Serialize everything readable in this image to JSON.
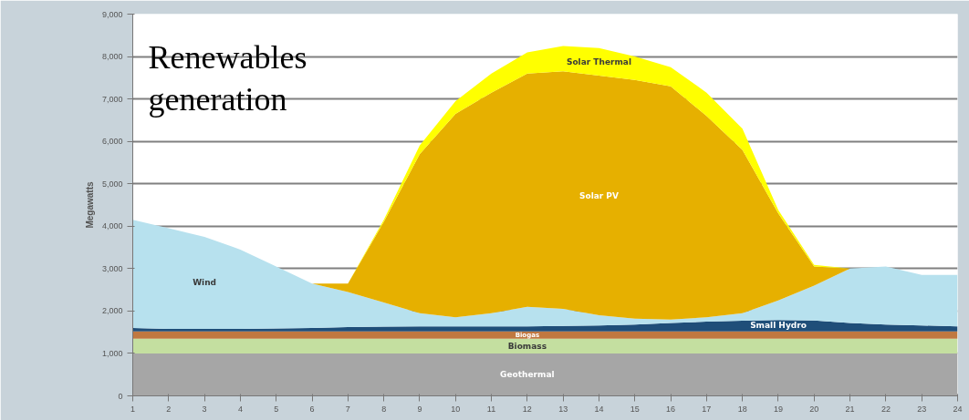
{
  "chart_data": {
    "type": "area",
    "title": "Renewables generation",
    "ylabel": "Megawatts",
    "stacked": true,
    "x": [
      1,
      2,
      3,
      4,
      5,
      6,
      7,
      8,
      9,
      10,
      11,
      12,
      13,
      14,
      15,
      16,
      17,
      18,
      19,
      20,
      21,
      22,
      23,
      24
    ],
    "xlim": [
      1,
      24
    ],
    "xticks": [
      1,
      2,
      3,
      4,
      5,
      6,
      7,
      8,
      9,
      10,
      11,
      12,
      13,
      14,
      15,
      16,
      17,
      18,
      19,
      20,
      21,
      22,
      23,
      24
    ],
    "ylim": [
      0,
      9000
    ],
    "yticks": [
      0,
      {
        "value": 1000,
        "label": "1,000"
      },
      {
        "value": 2000,
        "label": "2,000"
      },
      {
        "value": 3000,
        "label": "3,000"
      },
      {
        "value": 4000,
        "label": "4,000"
      },
      {
        "value": 5000,
        "label": "5,000"
      },
      {
        "value": 6000,
        "label": "6,000"
      },
      {
        "value": 7000,
        "label": "7,000"
      },
      {
        "value": 8000,
        "label": "8,000"
      },
      {
        "value": 9000,
        "label": "9,000"
      }
    ],
    "grid": "y",
    "series": [
      {
        "name": "Geothermal",
        "color": "#a6a6a6",
        "values": [
          1000,
          1000,
          1000,
          1000,
          1000,
          1000,
          1000,
          1000,
          1000,
          1000,
          1000,
          1000,
          1000,
          1000,
          1000,
          1000,
          1000,
          1000,
          1000,
          1000,
          1000,
          1000,
          1000,
          1000
        ]
      },
      {
        "name": "Biomass",
        "color": "#c4dfa0",
        "values": [
          350,
          350,
          350,
          350,
          350,
          350,
          350,
          350,
          350,
          350,
          350,
          350,
          350,
          350,
          350,
          350,
          350,
          350,
          350,
          350,
          350,
          350,
          350,
          350
        ]
      },
      {
        "name": "Biogas",
        "color": "#c07840",
        "values": [
          170,
          170,
          170,
          170,
          170,
          170,
          170,
          170,
          170,
          170,
          170,
          170,
          170,
          170,
          170,
          170,
          170,
          170,
          170,
          170,
          170,
          170,
          170,
          170
        ]
      },
      {
        "name": "Small Hydro",
        "color": "#1f4e79",
        "values": [
          80,
          60,
          60,
          60,
          70,
          80,
          100,
          110,
          120,
          120,
          120,
          120,
          130,
          140,
          160,
          200,
          230,
          250,
          270,
          260,
          200,
          160,
          140,
          120
        ]
      },
      {
        "name": "Wind",
        "color": "#b7e1ee",
        "values": [
          2550,
          2370,
          2170,
          1870,
          1460,
          1050,
          830,
          570,
          310,
          210,
          310,
          460,
          400,
          240,
          140,
          80,
          100,
          180,
          460,
          820,
          1280,
          1370,
          1190,
          1210
        ]
      },
      {
        "name": "Solar PV",
        "color": "#e6b000",
        "values": [
          0,
          0,
          0,
          0,
          0,
          0,
          200,
          1900,
          3750,
          4800,
          5200,
          5500,
          5600,
          5650,
          5630,
          5500,
          4750,
          3850,
          2050,
          450,
          0,
          0,
          0,
          0
        ]
      },
      {
        "name": "Solar Thermal",
        "color": "#ffff00",
        "values": [
          0,
          0,
          0,
          0,
          0,
          0,
          0,
          50,
          200,
          300,
          450,
          500,
          600,
          650,
          550,
          450,
          550,
          500,
          80,
          40,
          0,
          0,
          0,
          0
        ]
      }
    ]
  }
}
